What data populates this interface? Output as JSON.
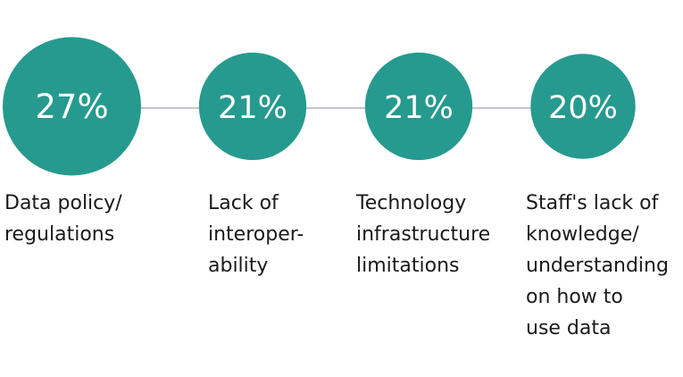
{
  "chart_data": {
    "type": "bubble",
    "title": "",
    "categories": [
      "Data policy/\nregulations",
      "Lack of\ninteroper-\nability",
      "Technology\ninfrastructure\nlimitations",
      "Staff's lack of\nknowledge/\nunderstanding\non how to\nuse data"
    ],
    "values": [
      27,
      21,
      21,
      20
    ],
    "value_labels": [
      "27%",
      "21%",
      "21%",
      "20%"
    ],
    "unit": "%",
    "colors": {
      "bubble": "#269a8e",
      "connector": "#c4c4cc",
      "value_text": "#ffffff"
    }
  }
}
